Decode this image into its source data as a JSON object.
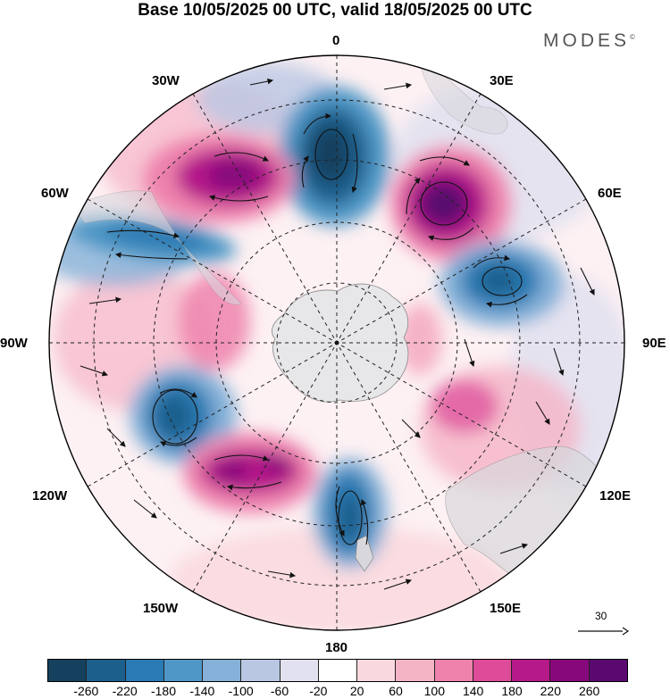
{
  "title": "Base 10/05/2025 00 UTC, valid 18/05/2025 00 UTC",
  "brand": {
    "name": "MODES",
    "mark": "©"
  },
  "longitude_labels": {
    "lon_0": "0",
    "lon_30e": "30E",
    "lon_30w": "30W",
    "lon_60e": "60E",
    "lon_60w": "60W",
    "lon_90e": "90E",
    "lon_90w": "90W",
    "lon_120e": "120E",
    "lon_120w": "120W",
    "lon_150e": "150E",
    "lon_150w": "150W",
    "lon_180": "180"
  },
  "reference_vector": {
    "value": "30"
  },
  "colorbar": {
    "ticks": [
      "-260",
      "-220",
      "-180",
      "-140",
      "-100",
      "-60",
      "-20",
      "20",
      "60",
      "100",
      "140",
      "180",
      "220",
      "260"
    ],
    "colors": [
      "#15415e",
      "#1d5f8c",
      "#2a7ab3",
      "#4f97c6",
      "#85b1d8",
      "#b9c7e3",
      "#e2e1ef",
      "#ffffff",
      "#f9d9df",
      "#f5b3c6",
      "#ee82ad",
      "#de4b98",
      "#b5198a",
      "#86087b",
      "#5a0a6f"
    ]
  },
  "map_features": {
    "projection": "south-polar-stereographic",
    "continents_shaded": true,
    "graticule": "dashed",
    "anomaly_centers": [
      {
        "name": "negative-anomaly-south-atlantic",
        "sign": "negative",
        "color": "#1d5f8c"
      },
      {
        "name": "positive-anomaly-southwest-atlantic",
        "sign": "positive",
        "color": "#86087b"
      },
      {
        "name": "positive-anomaly-southeast-atlantic",
        "sign": "positive",
        "color": "#5a0a6f"
      },
      {
        "name": "negative-anomaly-southwest-indian",
        "sign": "negative",
        "color": "#2a7ab3"
      },
      {
        "name": "negative-anomaly-drake-passage",
        "sign": "negative",
        "color": "#2a7ab3"
      },
      {
        "name": "negative-anomaly-southeast-pacific",
        "sign": "negative",
        "color": "#1d5f8c"
      },
      {
        "name": "positive-anomaly-south-pacific",
        "sign": "positive",
        "color": "#b5198a"
      },
      {
        "name": "negative-anomaly-ross-sea",
        "sign": "negative",
        "color": "#1d5f8c"
      },
      {
        "name": "positive-anomaly-southern-indian",
        "sign": "positive",
        "color": "#ee82ad"
      }
    ]
  }
}
